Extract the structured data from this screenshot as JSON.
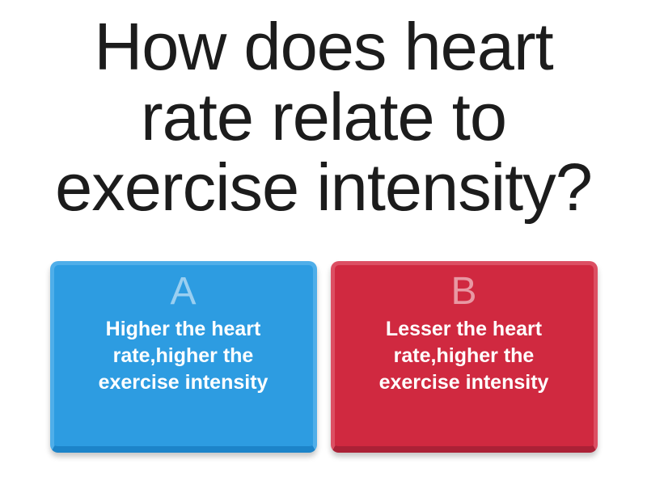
{
  "question": {
    "title": "How does heart rate relate to exercise intensity?"
  },
  "answers": [
    {
      "letter": "A",
      "text": "Higher the heart rate,higher the exercise intensity",
      "colors": {
        "fill": "#2d9ce1",
        "light": "#4faee9",
        "dark": "#1c84c9"
      }
    },
    {
      "letter": "B",
      "text": "Lesser the heart rate,higher the exercise intensity",
      "colors": {
        "fill": "#d02940",
        "light": "#dc4f63",
        "dark": "#ab2136"
      }
    }
  ]
}
